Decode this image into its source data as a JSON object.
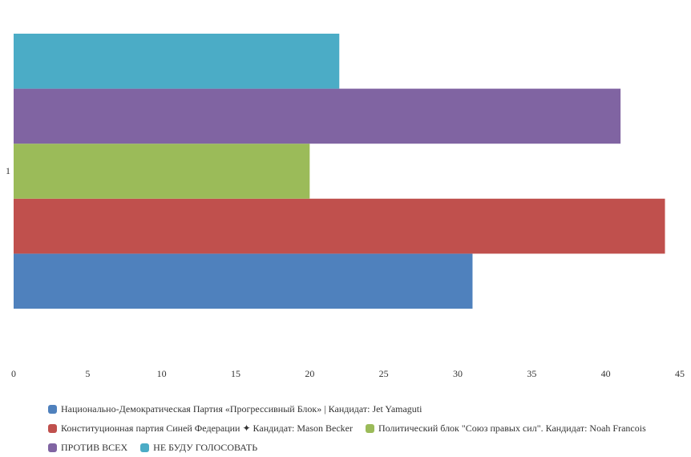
{
  "chart_data": {
    "type": "bar",
    "orientation": "horizontal",
    "title": "",
    "xlabel": "",
    "ylabel": "",
    "categories": [
      "1"
    ],
    "xlim": [
      0,
      45
    ],
    "xticks": [
      "0",
      "5",
      "10",
      "15",
      "20",
      "25",
      "30",
      "35",
      "40",
      "45"
    ],
    "grid": false,
    "legend_position": "bottom",
    "series": [
      {
        "name": "Национально-Демократическая Партия «Прогрессивный Блок» | Кандидат: Jet Yamaguti",
        "values": [
          31
        ],
        "color": "#4f81bd"
      },
      {
        "name": "Конституционная партия Синей Федерации ✦ Кандидат: Mason Becker",
        "values": [
          44
        ],
        "color": "#c0504d"
      },
      {
        "name": "Политический блок \"Союз правых сил\". Кандидат: Noah Francois",
        "values": [
          20
        ],
        "color": "#9bbb59"
      },
      {
        "name": "ПРОТИВ ВСЕХ",
        "values": [
          41
        ],
        "color": "#8064a2"
      },
      {
        "name": "НЕ БУДУ ГОЛОСОВАТЬ",
        "values": [
          22
        ],
        "color": "#4bacc6"
      }
    ]
  }
}
